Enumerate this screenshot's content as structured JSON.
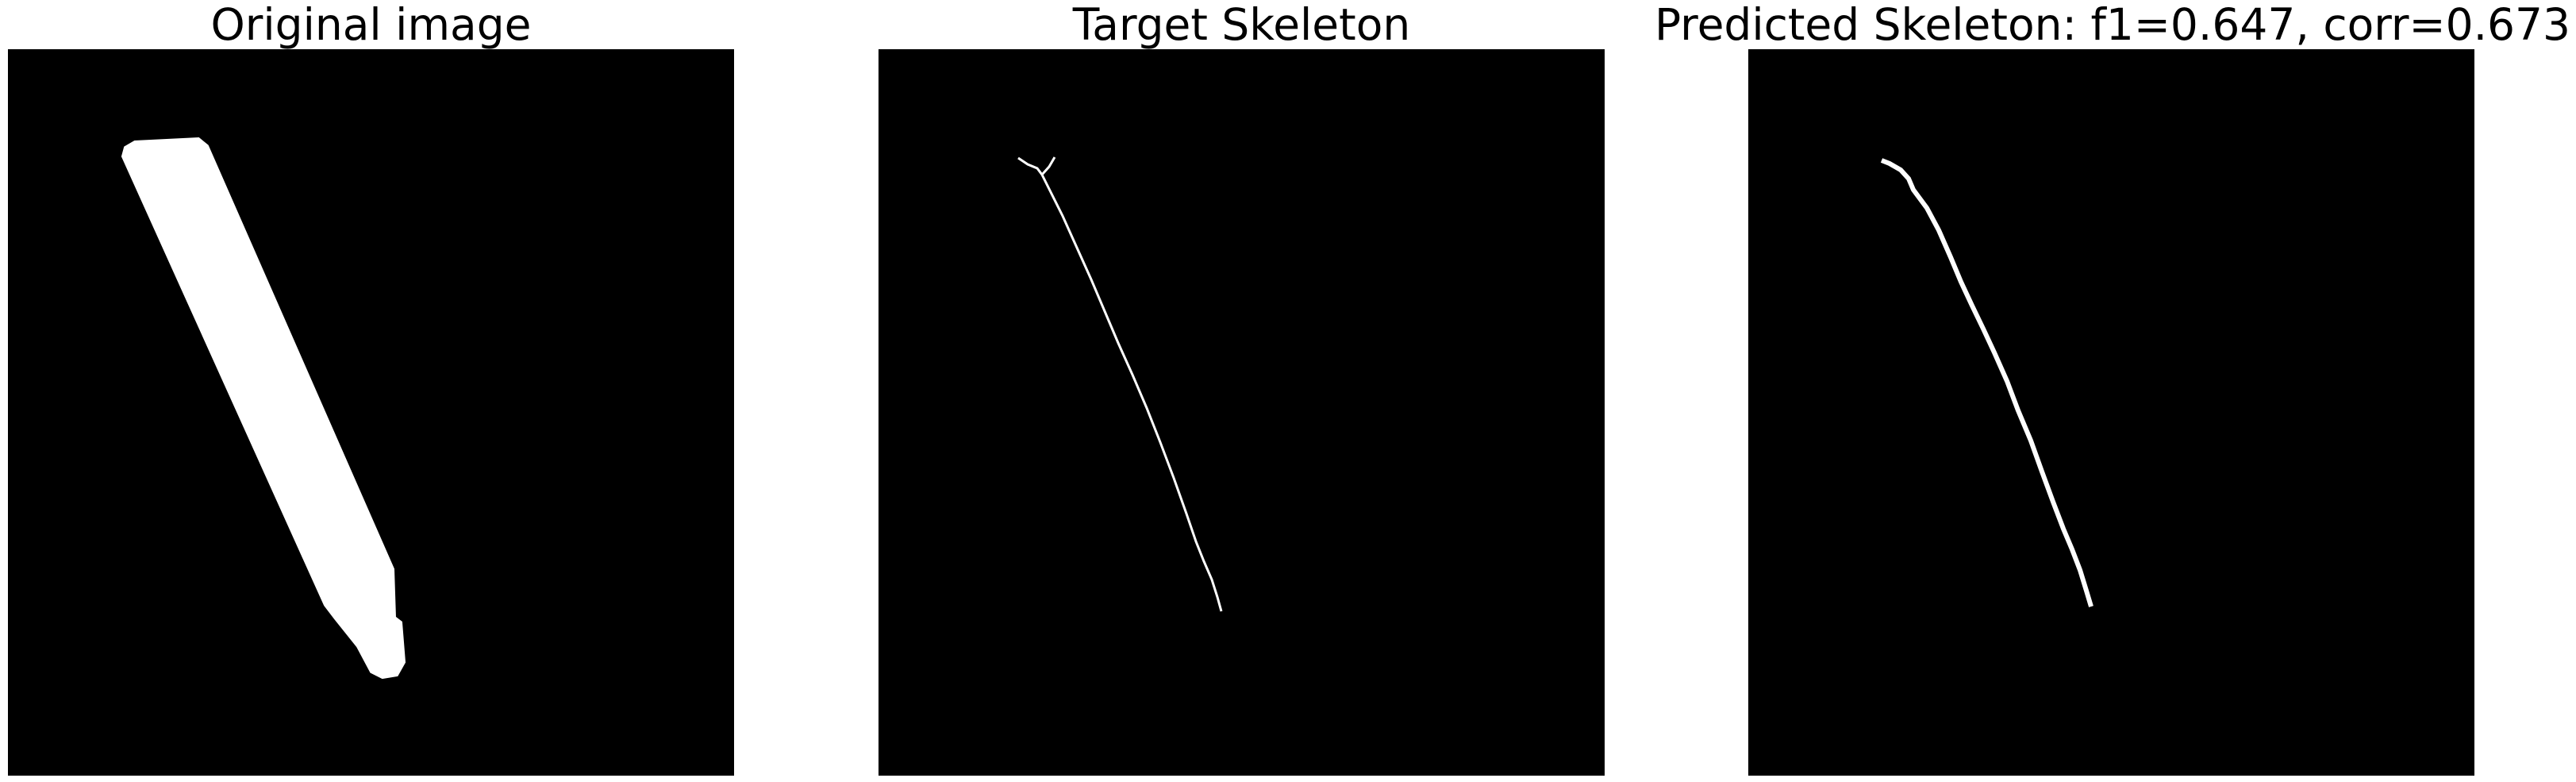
{
  "figure": {
    "panels": [
      {
        "title": "Original image"
      },
      {
        "title": "Target Skeleton"
      },
      {
        "title": "Predicted Skeleton: f1=0.647, corr=0.673"
      }
    ]
  },
  "colors": {
    "background": "#000000",
    "foreground": "#ffffff",
    "page": "#ffffff"
  }
}
